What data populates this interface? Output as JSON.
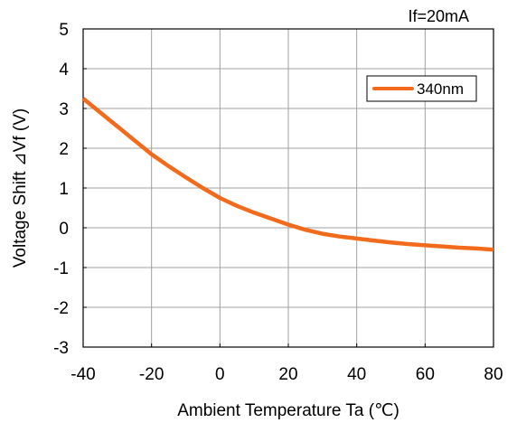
{
  "chart_data": {
    "type": "line",
    "title": "",
    "annotation": "If=20mA",
    "xlabel": "Ambient Temperature Ta (℃)",
    "ylabel": "Voltage Shift ⊿Vf (V)",
    "xlim": [
      -40,
      80
    ],
    "ylim": [
      -3,
      5
    ],
    "xticks": [
      -40,
      -20,
      0,
      20,
      40,
      60,
      80
    ],
    "yticks": [
      -3,
      -2,
      -1,
      0,
      1,
      2,
      3,
      4,
      5
    ],
    "grid": true,
    "legend_position": "top-right",
    "series": [
      {
        "name": "340nm",
        "color": "#f26b1d",
        "x": [
          -40,
          -35,
          -30,
          -25,
          -20,
          -15,
          -10,
          -5,
          0,
          5,
          10,
          15,
          20,
          25,
          30,
          35,
          40,
          45,
          50,
          55,
          60,
          65,
          70,
          75,
          80
        ],
        "y": [
          3.25,
          2.9,
          2.55,
          2.2,
          1.85,
          1.55,
          1.27,
          1.0,
          0.75,
          0.55,
          0.38,
          0.23,
          0.08,
          -0.05,
          -0.15,
          -0.22,
          -0.27,
          -0.32,
          -0.37,
          -0.41,
          -0.44,
          -0.47,
          -0.5,
          -0.52,
          -0.55
        ]
      }
    ]
  }
}
